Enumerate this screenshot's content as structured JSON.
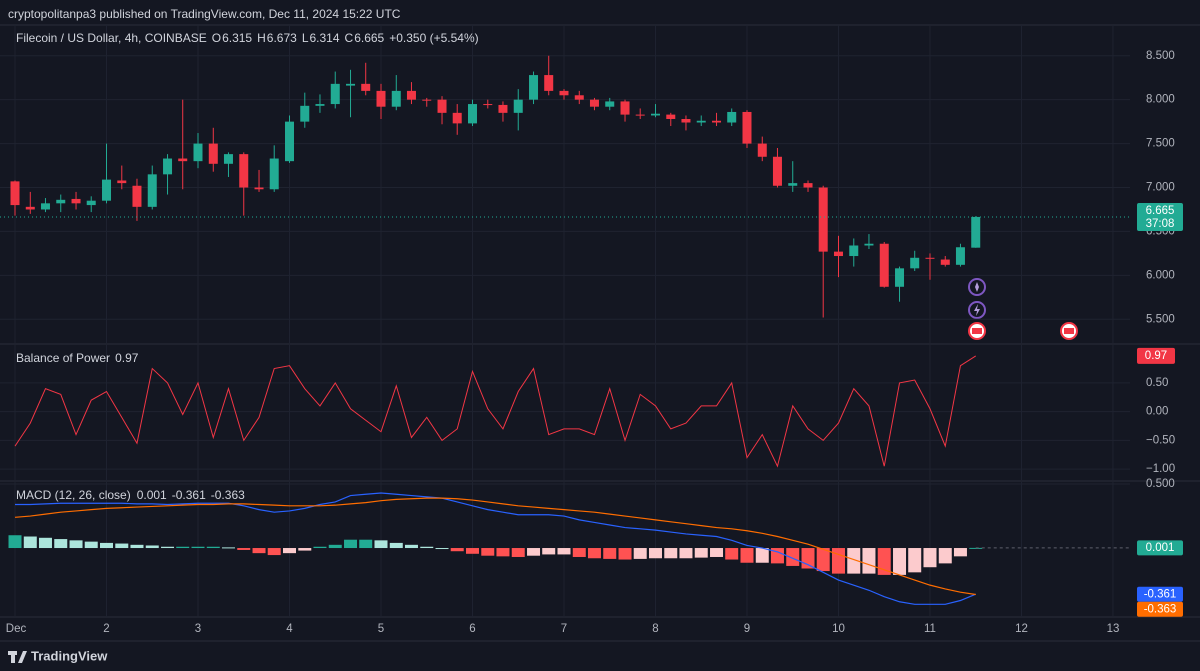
{
  "header": "cryptopolitanpa3 published on TradingView.com, Dec 11, 2024 15:22 UTC",
  "footer": "TradingView",
  "chart_data": [
    {
      "type": "candlestick",
      "title": "Filecoin / US Dollar, 4h, COINBASE",
      "ohlc_labels": [
        "O",
        "H",
        "L",
        "C"
      ],
      "change_label": "+0.350 (+5.54%)",
      "countdown": "37:08",
      "up_color": "#22ab94",
      "down_color": "#f23645",
      "x": [
        1,
        1.167,
        1.333,
        1.5,
        1.667,
        1.833,
        2,
        2.167,
        2.333,
        2.5,
        2.667,
        2.833,
        3,
        3.167,
        3.333,
        3.5,
        3.667,
        3.833,
        4,
        4.167,
        4.333,
        4.5,
        4.667,
        4.833,
        5,
        5.167,
        5.333,
        5.5,
        5.667,
        5.833,
        6,
        6.167,
        6.333,
        6.5,
        6.667,
        6.833,
        7,
        7.167,
        7.333,
        7.5,
        7.667,
        7.833,
        8,
        8.167,
        8.333,
        8.5,
        8.667,
        8.833,
        9,
        9.167,
        9.333,
        9.5,
        9.667,
        9.833,
        10,
        10.167,
        10.333,
        10.5,
        10.667,
        10.833,
        11,
        11.167,
        11.333,
        11.5
      ],
      "open": [
        7.07,
        6.78,
        6.75,
        6.82,
        6.87,
        6.8,
        6.85,
        7.08,
        7.02,
        6.78,
        7.15,
        7.33,
        7.3,
        7.5,
        7.27,
        7.38,
        7.0,
        6.98,
        7.3,
        7.75,
        7.93,
        7.95,
        8.16,
        8.18,
        8.1,
        7.92,
        8.1,
        8.0,
        8.0,
        7.85,
        7.73,
        7.95,
        7.94,
        7.85,
        8.0,
        8.28,
        8.1,
        8.05,
        8.0,
        7.92,
        7.98,
        7.83,
        7.82,
        7.83,
        7.78,
        7.74,
        7.76,
        7.74,
        7.86,
        7.5,
        7.35,
        7.02,
        7.05,
        7.0,
        6.27,
        6.22,
        6.34,
        6.36,
        5.87,
        6.08,
        6.2,
        6.18,
        6.12,
        6.315
      ],
      "high": [
        7.08,
        6.95,
        6.88,
        6.92,
        6.95,
        6.9,
        7.5,
        7.25,
        7.1,
        7.25,
        7.38,
        8.0,
        7.62,
        7.68,
        7.4,
        7.4,
        7.2,
        7.48,
        7.82,
        8.08,
        8.06,
        8.32,
        8.34,
        8.42,
        8.18,
        8.28,
        8.2,
        8.02,
        8.04,
        7.95,
        8.0,
        8.0,
        7.98,
        8.12,
        8.32,
        8.5,
        8.12,
        8.1,
        8.02,
        8.02,
        8.0,
        7.9,
        7.95,
        7.85,
        7.82,
        7.82,
        7.85,
        7.9,
        7.88,
        7.58,
        7.45,
        7.3,
        7.08,
        7.02,
        6.45,
        6.42,
        6.47,
        6.38,
        6.1,
        6.28,
        6.25,
        6.22,
        6.36,
        6.673
      ],
      "low": [
        6.68,
        6.7,
        6.72,
        6.72,
        6.75,
        6.72,
        6.82,
        6.98,
        6.62,
        6.75,
        6.92,
        6.98,
        7.22,
        7.18,
        7.12,
        6.68,
        6.95,
        6.95,
        7.28,
        7.68,
        7.85,
        7.9,
        7.8,
        8.05,
        7.78,
        7.88,
        7.95,
        7.92,
        7.72,
        7.6,
        7.7,
        7.9,
        7.75,
        7.65,
        7.95,
        8.05,
        8.0,
        7.95,
        7.88,
        7.88,
        7.75,
        7.78,
        7.8,
        7.7,
        7.65,
        7.7,
        7.7,
        7.7,
        7.45,
        7.3,
        7.0,
        6.95,
        6.95,
        5.52,
        5.98,
        6.1,
        6.3,
        5.86,
        5.7,
        6.05,
        5.95,
        6.1,
        6.1,
        6.314
      ],
      "close": [
        6.8,
        6.75,
        6.82,
        6.86,
        6.82,
        6.85,
        7.09,
        7.05,
        6.78,
        7.15,
        7.33,
        7.3,
        7.5,
        7.27,
        7.38,
        7.0,
        6.98,
        7.33,
        7.75,
        7.93,
        7.95,
        8.18,
        8.18,
        8.1,
        7.92,
        8.1,
        8.0,
        7.99,
        7.85,
        7.73,
        7.95,
        7.94,
        7.85,
        8.0,
        8.28,
        8.1,
        8.05,
        8.0,
        7.92,
        7.98,
        7.83,
        7.82,
        7.84,
        7.78,
        7.74,
        7.76,
        7.74,
        7.86,
        7.5,
        7.35,
        7.02,
        7.05,
        7.0,
        6.27,
        6.22,
        6.34,
        6.36,
        5.87,
        6.08,
        6.2,
        6.19,
        6.12,
        6.32,
        6.665
      ],
      "xlim": [
        0.836,
        13.186
      ],
      "xticks": [
        {
          "value": 1,
          "label": "Dec"
        },
        2,
        3,
        4,
        5,
        6,
        7,
        8,
        9,
        10,
        11,
        12,
        13
      ],
      "ylim": [
        5.23,
        8.85
      ],
      "yticks": [
        {
          "value": 8.5,
          "label": "8.500"
        },
        {
          "value": 8,
          "label": "8.000"
        },
        {
          "value": 7.5,
          "label": "7.500"
        },
        {
          "value": 7,
          "label": "7.000"
        },
        {
          "value": 6.5,
          "label": "6.500"
        },
        {
          "value": 6,
          "label": "6.000"
        },
        {
          "value": 5.5,
          "label": "5.500"
        }
      ],
      "grid": true
    },
    {
      "type": "line",
      "title": "Balance of Power",
      "color": "#f23645",
      "values": [
        -0.6,
        -0.2,
        0.4,
        0.3,
        -0.4,
        0.2,
        0.35,
        -0.1,
        -0.55,
        0.75,
        0.5,
        -0.05,
        0.5,
        -0.45,
        0.4,
        -0.5,
        -0.1,
        0.75,
        0.8,
        0.4,
        0.1,
        0.5,
        0.05,
        -0.15,
        -0.35,
        0.45,
        -0.45,
        -0.1,
        -0.5,
        -0.3,
        0.7,
        0.05,
        -0.3,
        0.35,
        0.75,
        -0.4,
        -0.3,
        -0.3,
        -0.4,
        0.4,
        -0.5,
        0.3,
        0.1,
        -0.3,
        -0.2,
        0.1,
        0.1,
        0.5,
        -0.8,
        -0.4,
        -0.95,
        0.1,
        -0.3,
        -0.5,
        -0.2,
        0.4,
        0.1,
        -0.95,
        0.5,
        0.55,
        0.05,
        -0.6,
        0.8,
        0.97
      ],
      "ylim": [
        -1.19,
        1.16
      ],
      "yticks": [
        {
          "value": 0.5,
          "label": "0.50"
        },
        {
          "value": 0,
          "label": "0.00"
        },
        {
          "value": -0.5,
          "label": "−0.50"
        },
        {
          "value": -1,
          "label": "−1.00"
        }
      ],
      "grid": true
    },
    {
      "type": "macd",
      "title": "MACD (12, 26, close)",
      "series": [
        {
          "color": "#2962ff",
          "values": [
            0.34,
            0.34,
            0.345,
            0.35,
            0.35,
            0.35,
            0.35,
            0.35,
            0.345,
            0.345,
            0.34,
            0.345,
            0.35,
            0.35,
            0.35,
            0.33,
            0.3,
            0.28,
            0.29,
            0.31,
            0.34,
            0.36,
            0.41,
            0.42,
            0.43,
            0.42,
            0.41,
            0.4,
            0.39,
            0.36,
            0.33,
            0.3,
            0.28,
            0.26,
            0.26,
            0.26,
            0.25,
            0.22,
            0.2,
            0.18,
            0.16,
            0.15,
            0.14,
            0.125,
            0.11,
            0.1,
            0.09,
            0.06,
            0.02,
            0.0,
            -0.03,
            -0.08,
            -0.13,
            -0.19,
            -0.25,
            -0.29,
            -0.33,
            -0.38,
            -0.42,
            -0.44,
            -0.44,
            -0.44,
            -0.41,
            -0.361
          ]
        },
        {
          "color": "#ff6d00",
          "values": [
            0.24,
            0.25,
            0.265,
            0.28,
            0.29,
            0.3,
            0.31,
            0.315,
            0.32,
            0.325,
            0.33,
            0.335,
            0.34,
            0.34,
            0.345,
            0.345,
            0.34,
            0.335,
            0.33,
            0.33,
            0.33,
            0.335,
            0.345,
            0.355,
            0.37,
            0.38,
            0.385,
            0.39,
            0.39,
            0.385,
            0.375,
            0.36,
            0.345,
            0.33,
            0.32,
            0.31,
            0.3,
            0.29,
            0.28,
            0.265,
            0.25,
            0.235,
            0.22,
            0.205,
            0.19,
            0.175,
            0.16,
            0.15,
            0.135,
            0.115,
            0.09,
            0.06,
            0.03,
            -0.01,
            -0.05,
            -0.09,
            -0.13,
            -0.17,
            -0.21,
            -0.25,
            -0.29,
            -0.32,
            -0.345,
            -0.363
          ]
        }
      ],
      "histogram": {
        "colors": [
          "#22ab94",
          "#ace5dc",
          "#fccbcd",
          "#ff5252"
        ],
        "values": [
          0.1,
          0.09,
          0.08,
          0.07,
          0.06,
          0.05,
          0.04,
          0.035,
          0.025,
          0.02,
          0.01,
          0.01,
          0.01,
          0.01,
          0.005,
          -0.015,
          -0.04,
          -0.055,
          -0.04,
          -0.02,
          0.01,
          0.025,
          0.065,
          0.065,
          0.06,
          0.04,
          0.025,
          0.01,
          0.0,
          -0.025,
          -0.045,
          -0.06,
          -0.065,
          -0.07,
          -0.06,
          -0.05,
          -0.05,
          -0.07,
          -0.08,
          -0.085,
          -0.09,
          -0.085,
          -0.08,
          -0.08,
          -0.08,
          -0.075,
          -0.07,
          -0.09,
          -0.115,
          -0.115,
          -0.12,
          -0.14,
          -0.16,
          -0.18,
          -0.2,
          -0.2,
          -0.2,
          -0.21,
          -0.21,
          -0.19,
          -0.15,
          -0.12,
          -0.065,
          0.001
        ]
      },
      "ylim": [
        -0.539,
        0.516
      ],
      "yticks": [
        {
          "value": 0.5,
          "label": "0.500"
        }
      ],
      "grid": true
    }
  ]
}
